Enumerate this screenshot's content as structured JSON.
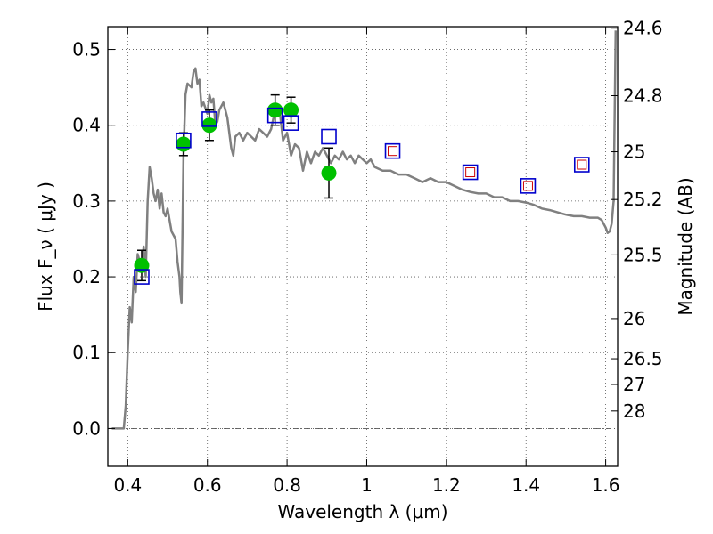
{
  "chart_data": {
    "type": "scatter",
    "title": "",
    "xlabel": "Wavelength  λ (μm)",
    "ylabel": "Flux  F_ν  ( μJy )",
    "y2label": "Magnitude (AB)",
    "xlim": [
      0.35,
      1.63
    ],
    "ylim": [
      -0.05,
      0.53
    ],
    "grid": true,
    "x_ticks": [
      0.4,
      0.6,
      0.8,
      1.0,
      1.2,
      1.4,
      1.6
    ],
    "x_tick_labels": [
      "0.4",
      "0.6",
      "0.8",
      "1",
      "1.2",
      "1.4",
      "1.6"
    ],
    "y_ticks": [
      0.0,
      0.1,
      0.2,
      0.3,
      0.4,
      0.5
    ],
    "y_tick_labels": [
      "0.0",
      "0.1",
      "0.2",
      "0.3",
      "0.4",
      "0.5"
    ],
    "y2_ticks": [
      {
        "mag": "24.6",
        "flux": 0.528
      },
      {
        "mag": "24.8",
        "flux": 0.439
      },
      {
        "mag": "25",
        "flux": 0.365
      },
      {
        "mag": "25.2",
        "flux": 0.302
      },
      {
        "mag": "25.5",
        "flux": 0.229
      },
      {
        "mag": "26",
        "flux": 0.145
      },
      {
        "mag": "26.5",
        "flux": 0.092
      },
      {
        "mag": "27",
        "flux": 0.058
      },
      {
        "mag": "28",
        "flux": 0.023
      }
    ],
    "colors": {
      "model": "#808080",
      "observed": "#00c000",
      "model_phot": "#0000cc",
      "ir_inner": "#cc0000",
      "errorbar": "#000000",
      "grid": "#555555"
    },
    "series": [
      {
        "name": "model spectrum",
        "kind": "line",
        "x": [
          0.36,
          0.39,
          0.395,
          0.4,
          0.405,
          0.41,
          0.415,
          0.42,
          0.425,
          0.43,
          0.435,
          0.44,
          0.445,
          0.45,
          0.455,
          0.46,
          0.465,
          0.47,
          0.475,
          0.48,
          0.485,
          0.49,
          0.495,
          0.5,
          0.51,
          0.52,
          0.525,
          0.53,
          0.532,
          0.535,
          0.54,
          0.545,
          0.55,
          0.56,
          0.565,
          0.57,
          0.575,
          0.58,
          0.585,
          0.59,
          0.6,
          0.605,
          0.61,
          0.615,
          0.62,
          0.625,
          0.63,
          0.64,
          0.65,
          0.66,
          0.665,
          0.67,
          0.68,
          0.69,
          0.7,
          0.71,
          0.72,
          0.73,
          0.74,
          0.75,
          0.76,
          0.77,
          0.78,
          0.79,
          0.8,
          0.81,
          0.82,
          0.83,
          0.84,
          0.85,
          0.86,
          0.87,
          0.88,
          0.89,
          0.9,
          0.91,
          0.92,
          0.93,
          0.94,
          0.95,
          0.96,
          0.97,
          0.98,
          0.99,
          1.0,
          1.01,
          1.02,
          1.04,
          1.06,
          1.08,
          1.1,
          1.12,
          1.14,
          1.16,
          1.18,
          1.2,
          1.22,
          1.24,
          1.26,
          1.28,
          1.3,
          1.32,
          1.34,
          1.36,
          1.38,
          1.4,
          1.42,
          1.44,
          1.46,
          1.48,
          1.5,
          1.52,
          1.54,
          1.56,
          1.58,
          1.59,
          1.6,
          1.605,
          1.61,
          1.615,
          1.62,
          1.625
        ],
        "y": [
          0.0,
          0.0,
          0.03,
          0.1,
          0.16,
          0.14,
          0.2,
          0.18,
          0.23,
          0.22,
          0.21,
          0.24,
          0.2,
          0.3,
          0.345,
          0.33,
          0.31,
          0.3,
          0.315,
          0.29,
          0.31,
          0.285,
          0.28,
          0.29,
          0.26,
          0.25,
          0.22,
          0.2,
          0.18,
          0.165,
          0.36,
          0.44,
          0.455,
          0.45,
          0.47,
          0.475,
          0.455,
          0.46,
          0.425,
          0.43,
          0.415,
          0.44,
          0.43,
          0.435,
          0.4,
          0.405,
          0.42,
          0.43,
          0.41,
          0.37,
          0.36,
          0.385,
          0.39,
          0.38,
          0.39,
          0.385,
          0.38,
          0.395,
          0.39,
          0.385,
          0.395,
          0.42,
          0.425,
          0.38,
          0.39,
          0.36,
          0.375,
          0.37,
          0.34,
          0.365,
          0.35,
          0.365,
          0.36,
          0.37,
          0.36,
          0.35,
          0.36,
          0.355,
          0.365,
          0.355,
          0.36,
          0.35,
          0.36,
          0.355,
          0.35,
          0.355,
          0.345,
          0.34,
          0.34,
          0.335,
          0.335,
          0.33,
          0.325,
          0.33,
          0.325,
          0.325,
          0.32,
          0.315,
          0.312,
          0.31,
          0.31,
          0.305,
          0.305,
          0.3,
          0.3,
          0.298,
          0.295,
          0.29,
          0.288,
          0.285,
          0.282,
          0.28,
          0.28,
          0.278,
          0.278,
          0.275,
          0.265,
          0.258,
          0.26,
          0.27,
          0.3,
          0.525
        ]
      },
      {
        "name": "observed photometry",
        "kind": "points",
        "marker": "circle",
        "x": [
          0.435,
          0.54,
          0.605,
          0.77,
          0.81,
          0.905
        ],
        "y": [
          0.215,
          0.375,
          0.4,
          0.42,
          0.42,
          0.337
        ],
        "err": [
          0.02,
          0.015,
          0.02,
          0.02,
          0.017,
          0.033
        ]
      },
      {
        "name": "model photometry",
        "kind": "points",
        "marker": "open-square",
        "x": [
          0.435,
          0.54,
          0.605,
          0.77,
          0.81,
          0.905,
          1.065,
          1.26,
          1.405,
          1.54
        ],
        "y": [
          0.2,
          0.38,
          0.408,
          0.413,
          0.403,
          0.385,
          0.366,
          0.338,
          0.32,
          0.348
        ]
      },
      {
        "name": "near-IR photometry",
        "kind": "points",
        "marker": "small-open-square",
        "x": [
          1.065,
          1.26,
          1.405,
          1.54
        ],
        "y": [
          0.366,
          0.338,
          0.32,
          0.348
        ]
      }
    ]
  }
}
